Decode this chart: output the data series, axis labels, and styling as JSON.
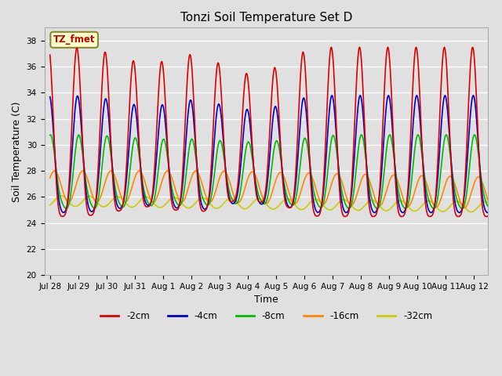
{
  "title": "Tonzi Soil Temperature Set D",
  "xlabel": "Time",
  "ylabel": "Soil Temperature (C)",
  "ylim": [
    20,
    39
  ],
  "yticks": [
    20,
    22,
    24,
    26,
    28,
    30,
    32,
    34,
    36,
    38
  ],
  "xtick_labels": [
    "Jul 28",
    "Jul 29",
    "Jul 30",
    "Jul 31",
    "Aug 1",
    "Aug 2",
    "Aug 3",
    "Aug 4",
    "Aug 5",
    "Aug 6",
    "Aug 7",
    "Aug 8",
    "Aug 9",
    "Aug 10",
    "Aug 11",
    "Aug 12"
  ],
  "xtick_positions": [
    0,
    1,
    2,
    3,
    4,
    5,
    6,
    7,
    8,
    9,
    10,
    11,
    12,
    13,
    14,
    15
  ],
  "annotation_text": "TZ_fmet",
  "series": {
    "-2cm": {
      "color": "#dd0000",
      "lw": 1.2
    },
    "-4cm": {
      "color": "#0000cc",
      "lw": 1.2
    },
    "-8cm": {
      "color": "#00bb00",
      "lw": 1.2
    },
    "-16cm": {
      "color": "#ff8800",
      "lw": 1.2
    },
    "-32cm": {
      "color": "#cccc00",
      "lw": 1.2
    }
  },
  "background_color": "#e0e0e0",
  "grid_color": "#ffffff"
}
